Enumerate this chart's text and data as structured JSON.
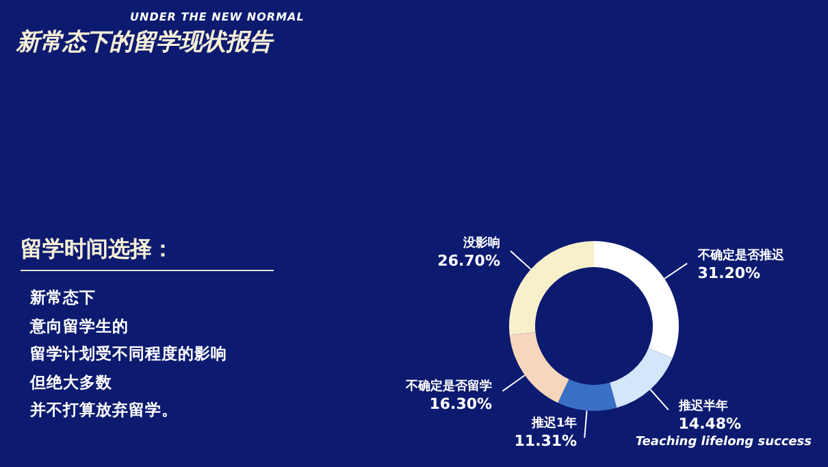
{
  "chart_data": {
    "type": "donut",
    "title": "新常态下的留学现状报告",
    "subtitle": "UNDER THE NEW NORMAL",
    "categories": [
      "不确定是否推迟",
      "推迟半年",
      "推迟1年",
      "不确定是否留学",
      "没影响"
    ],
    "values": [
      31.2,
      14.48,
      11.31,
      16.3,
      26.7
    ],
    "value_labels": [
      "31.20%",
      "14.48%",
      "11.31%",
      "16.30%",
      "26.70%"
    ],
    "colors": [
      "#ffffff",
      "#d4e6fa",
      "#3a6fc6",
      "#f8d6bc",
      "#f8f0cb"
    ],
    "annotations": [
      "留学时间选择：",
      "新常态下",
      "意向留学生的",
      "留学计划受不同程度的影响",
      "但绝大多数",
      "并不打算放弃留学。",
      "Teaching lifelong success"
    ]
  }
}
